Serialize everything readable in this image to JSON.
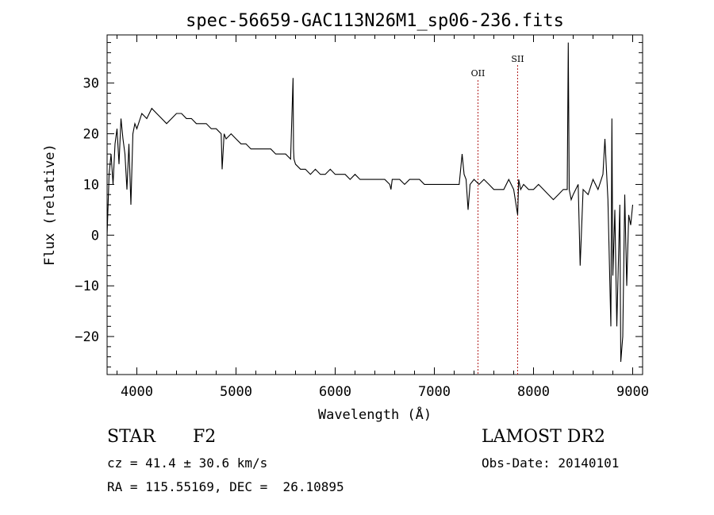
{
  "chart_data": {
    "type": "line",
    "title": "spec-56659-GAC113N26M1_sp06-236.fits",
    "xlabel": "Wavelength (Å)",
    "ylabel": "Flux (relative)",
    "xlim": [
      3700,
      9100
    ],
    "ylim": [
      -27.5,
      39.5
    ],
    "xticks": [
      "4000",
      "5000",
      "6000",
      "7000",
      "8000",
      "9000"
    ],
    "yticks": [
      "30",
      "20",
      "10",
      "0",
      "−10",
      "−20"
    ],
    "xtick_values": [
      4000,
      5000,
      6000,
      7000,
      8000,
      9000
    ],
    "ytick_values": [
      30,
      20,
      10,
      0,
      -10,
      -20
    ],
    "grid": false,
    "line_color": "#000000",
    "marker_color": "#b22222",
    "lines_marked": [
      {
        "label": "OII",
        "x": 7440
      },
      {
        "label": "SII",
        "x": 7840
      }
    ],
    "series": [
      {
        "x": [
          3700,
          3720,
          3740,
          3760,
          3780,
          3800,
          3820,
          3840,
          3860,
          3880,
          3900,
          3920,
          3940,
          3960,
          3980,
          4000,
          4050,
          4100,
          4150,
          4200,
          4250,
          4300,
          4350,
          4400,
          4450,
          4500,
          4550,
          4600,
          4650,
          4700,
          4750,
          4800,
          4850,
          4860,
          4880,
          4900,
          4950,
          5000,
          5050,
          5100,
          5150,
          5200,
          5250,
          5300,
          5350,
          5400,
          5450,
          5500,
          5550,
          5575,
          5580,
          5585,
          5600,
          5650,
          5700,
          5750,
          5800,
          5850,
          5900,
          5950,
          6000,
          6050,
          6100,
          6150,
          6200,
          6250,
          6300,
          6350,
          6400,
          6450,
          6500,
          6550,
          6562,
          6575,
          6600,
          6650,
          6700,
          6750,
          6800,
          6850,
          6900,
          6950,
          7000,
          7050,
          7100,
          7150,
          7200,
          7250,
          7280,
          7300,
          7320,
          7340,
          7360,
          7400,
          7450,
          7500,
          7550,
          7600,
          7650,
          7700,
          7750,
          7800,
          7840,
          7850,
          7870,
          7900,
          7950,
          8000,
          8050,
          8100,
          8150,
          8200,
          8250,
          8300,
          8340,
          8350,
          8360,
          8380,
          8400,
          8450,
          8470,
          8500,
          8550,
          8600,
          8650,
          8700,
          8720,
          8750,
          8780,
          8790,
          8800,
          8820,
          8840,
          8860,
          8870,
          8880,
          8900,
          8920,
          8940,
          8960,
          8980,
          9000
        ],
        "y": [
          0,
          12,
          16,
          10,
          18,
          21,
          14,
          23,
          19,
          16,
          9,
          18,
          6,
          20,
          22,
          21,
          24,
          23,
          25,
          24,
          23,
          22,
          23,
          24,
          24,
          23,
          23,
          22,
          22,
          22,
          21,
          21,
          20,
          13,
          20,
          19,
          20,
          19,
          18,
          18,
          17,
          17,
          17,
          17,
          17,
          16,
          16,
          16,
          15,
          31,
          17,
          15,
          14,
          13,
          13,
          12,
          13,
          12,
          12,
          13,
          12,
          12,
          12,
          11,
          12,
          11,
          11,
          11,
          11,
          11,
          11,
          10,
          9,
          11,
          11,
          11,
          10,
          11,
          11,
          11,
          10,
          10,
          10,
          10,
          10,
          10,
          10,
          10,
          16,
          12,
          11,
          5,
          10,
          11,
          10,
          11,
          10,
          9,
          9,
          9,
          11,
          9,
          4,
          11,
          9,
          10,
          9,
          9,
          10,
          9,
          8,
          7,
          8,
          9,
          9,
          38,
          9,
          7,
          8,
          10,
          -6,
          9,
          8,
          11,
          9,
          12,
          19,
          7,
          -18,
          23,
          -8,
          5,
          -18,
          -2,
          6,
          -25,
          -20,
          8,
          -10,
          4,
          2,
          6
        ]
      }
    ]
  },
  "info": {
    "object_class": "STAR",
    "subclass": "F2",
    "survey": "LAMOST DR2",
    "cz_line": "cz = 41.4 ± 30.6 km/s",
    "obs_date_line": "Obs-Date: 20140101",
    "radec_line": "RA = 115.55169, DEC =  26.10895"
  }
}
